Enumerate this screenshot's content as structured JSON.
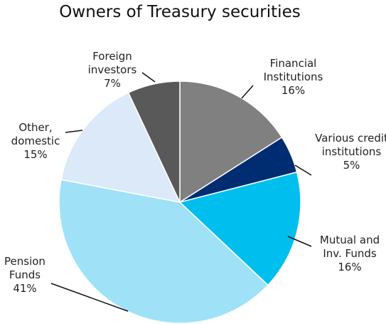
{
  "chart_data": {
    "type": "pie",
    "title": "Owners of Treasury securities",
    "categories": [
      "Financial Institutions",
      "Various credit institutions",
      "Mutual and Inv. Funds",
      "Pension Funds",
      "Other, domestic",
      "Foreign investors"
    ],
    "values": [
      16,
      5,
      16,
      41,
      15,
      7
    ],
    "value_labels": [
      "16%",
      "5%",
      "16%",
      "41%",
      "15%",
      "7%"
    ],
    "colors": [
      "#808080",
      "#002d72",
      "#00bfef",
      "#9fe2f7",
      "#dbe9f9",
      "#595959"
    ]
  }
}
